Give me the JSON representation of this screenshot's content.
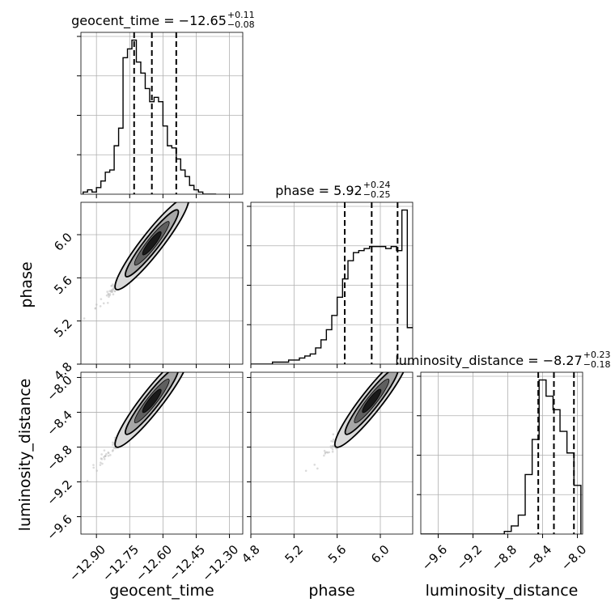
{
  "chart_data": {
    "type": "corner",
    "parameters": [
      "geocent_time",
      "phase",
      "luminosity_distance"
    ],
    "axis_labels": {
      "geocent_time": "geocent_time",
      "phase": "phase",
      "luminosity_distance": "luminosity_distance"
    },
    "ranges": {
      "geocent_time": [
        -12.97,
        -12.24
      ],
      "phase": [
        4.8,
        6.3
      ],
      "luminosity_distance": [
        -9.8,
        -7.94
      ]
    },
    "ticks": {
      "geocent_time": [
        -12.9,
        -12.75,
        -12.6,
        -12.45,
        -12.3
      ],
      "phase": [
        4.8,
        5.2,
        5.6,
        6.0
      ],
      "luminosity_distance": [
        -9.6,
        -9.2,
        -8.8,
        -8.4,
        -8.0
      ]
    },
    "tick_labels": {
      "geocent_time": [
        "−12.90",
        "−12.75",
        "−12.60",
        "−12.45",
        "−12.30"
      ],
      "phase": [
        "4.8",
        "5.2",
        "5.6",
        "6.0"
      ],
      "luminosity_distance": [
        "−9.6",
        "−9.2",
        "−8.8",
        "−8.4",
        "−8.0"
      ]
    },
    "titles": {
      "geocent_time": {
        "prefix": "geocent_time = −12.65",
        "plus": "+0.11",
        "minus": "−0.08"
      },
      "phase": {
        "prefix": "phase = 5.92",
        "plus": "+0.24",
        "minus": "−0.25"
      },
      "luminosity_distance": {
        "prefix": "luminosity_distance = −8.27",
        "plus": "+0.23",
        "minus": "−0.18"
      }
    },
    "quantiles": {
      "geocent_time": [
        -12.73,
        -12.65,
        -12.54
      ],
      "phase": [
        5.67,
        5.92,
        6.16
      ],
      "luminosity_distance": [
        -8.45,
        -8.27,
        -8.04
      ]
    },
    "histograms": {
      "geocent_time": {
        "edges": [
          -12.96,
          -12.94,
          -12.92,
          -12.9,
          -12.88,
          -12.86,
          -12.84,
          -12.82,
          -12.8,
          -12.78,
          -12.76,
          -12.74,
          -12.72,
          -12.7,
          -12.68,
          -12.66,
          -12.64,
          -12.62,
          -12.6,
          -12.58,
          -12.56,
          -12.54,
          -12.52,
          -12.5,
          -12.48,
          -12.46,
          -12.44,
          -12.42,
          -12.4,
          -12.38,
          -12.36
        ],
        "counts": [
          1,
          2,
          1,
          3,
          6,
          10,
          11,
          22,
          30,
          62,
          66,
          70,
          60,
          55,
          48,
          42,
          44,
          42,
          31,
          22,
          21,
          16,
          11,
          8,
          4,
          2,
          1,
          0,
          0,
          0
        ]
      },
      "phase": {
        "edges": [
          4.8,
          4.85,
          4.9,
          4.95,
          5.0,
          5.05,
          5.1,
          5.15,
          5.2,
          5.25,
          5.3,
          5.35,
          5.4,
          5.45,
          5.5,
          5.55,
          5.6,
          5.65,
          5.7,
          5.75,
          5.8,
          5.85,
          5.9,
          5.95,
          6.0,
          6.05,
          6.1,
          6.15,
          6.2,
          6.25,
          6.3
        ],
        "counts": [
          0,
          0,
          0,
          0,
          1,
          1,
          1,
          2,
          2,
          3,
          4,
          5,
          8,
          12,
          17,
          24,
          33,
          42,
          51,
          55,
          56,
          57,
          58,
          58,
          58,
          57,
          58,
          56,
          76,
          18
        ]
      },
      "luminosity_distance": {
        "edges": [
          -9.8,
          -9.72,
          -9.64,
          -9.56,
          -9.48,
          -9.4,
          -9.32,
          -9.24,
          -9.16,
          -9.08,
          -9.0,
          -8.92,
          -8.84,
          -8.76,
          -8.68,
          -8.6,
          -8.52,
          -8.44,
          -8.36,
          -8.28,
          -8.2,
          -8.12,
          -8.04,
          -7.96
        ],
        "counts": [
          0,
          0,
          0,
          0,
          0,
          0,
          0,
          0,
          0,
          0,
          0,
          0,
          1,
          3,
          7,
          22,
          35,
          57,
          51,
          46,
          38,
          30,
          18,
          0
        ]
      }
    },
    "grid": true,
    "scatter_color": "#bdbdbd",
    "contour_color": "#000000",
    "fill_colors": [
      "#d9d9d9",
      "#a6a6a6",
      "#5f5f5f",
      "#1a1a1a"
    ]
  }
}
